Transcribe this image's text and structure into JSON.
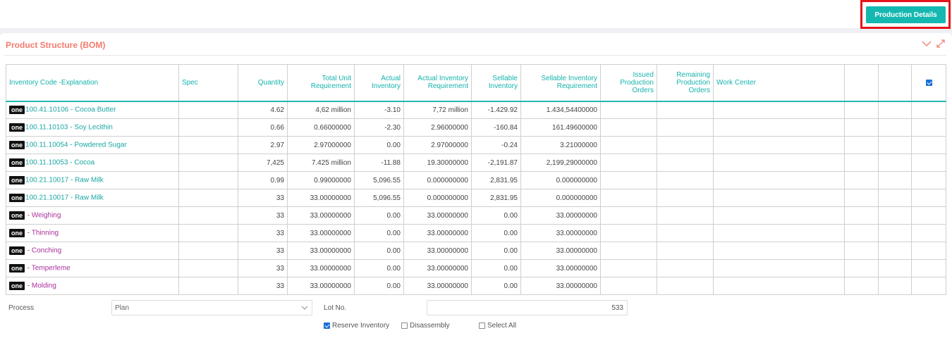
{
  "header": {
    "production_details_label": "Production Details"
  },
  "panel": {
    "title": "Product Structure (BOM)"
  },
  "table": {
    "columns": {
      "code": "Inventory Code -Explanation",
      "spec": "Spec",
      "quantity": "Quantity",
      "total_unit": "Total Unit Requirement",
      "actual_inventory": "Actual Inventory",
      "actual_inventory_req": "Actual Inventory Requirement",
      "sellable_inventory": "Sellable Inventory",
      "sellable_inventory_req": "Sellable Inventory Requirement",
      "issued_orders": "Issued Production Orders",
      "remaining_orders": "Remaining Production Orders",
      "work_center": "Work Center"
    },
    "rows": [
      {
        "badge": "one",
        "code": "100.41.10106 - Cocoa Butter",
        "quantity": "4.62",
        "total_unit": "4,62 million",
        "actual_inventory": "-3.10",
        "actual_inventory_req": "7,72 million",
        "sellable_inventory": "-1.429.92",
        "sellable_inventory_req": "1.434,54400000"
      },
      {
        "badge": "one",
        "code": "100.11.10103 - Soy Lecithin",
        "quantity": "0.66",
        "total_unit": "0.66000000",
        "actual_inventory": "-2.30",
        "actual_inventory_req": "2.96000000",
        "sellable_inventory": "-160.84",
        "sellable_inventory_req": "161.49600000"
      },
      {
        "badge": "one",
        "code": "100.11.10054 - Powdered Sugar",
        "quantity": "2.97",
        "total_unit": "2.97000000",
        "actual_inventory": "0.00",
        "actual_inventory_req": "2.97000000",
        "sellable_inventory": "-0.24",
        "sellable_inventory_req": "3.21000000"
      },
      {
        "badge": "one",
        "code": "100.11.10053 - Cocoa",
        "quantity": "7,425",
        "total_unit": "7.425 million",
        "actual_inventory": "-11.88",
        "actual_inventory_req": "19.30000000",
        "sellable_inventory": "-2,191.87",
        "sellable_inventory_req": "2,199,29000000"
      },
      {
        "badge": "one",
        "code": "100.21.10017 - Raw Milk",
        "quantity": "0.99",
        "total_unit": "0.99000000",
        "actual_inventory": "5,096.55",
        "actual_inventory_req": "0.000000000",
        "sellable_inventory": "2,831.95",
        "sellable_inventory_req": "0.000000000"
      },
      {
        "badge": "one",
        "code": "100.21.10017 - Raw Milk",
        "quantity": "33",
        "total_unit": "33.00000000",
        "actual_inventory": "5,096.55",
        "actual_inventory_req": "0.000000000",
        "sellable_inventory": "2,831.95",
        "sellable_inventory_req": "0.000000000"
      },
      {
        "badge": "one",
        "code": " - Weighing",
        "quantity": "33",
        "total_unit": "33.00000000",
        "actual_inventory": "0.00",
        "actual_inventory_req": "33.00000000",
        "sellable_inventory": "0.00",
        "sellable_inventory_req": "33.00000000"
      },
      {
        "badge": "one",
        "code": " - Thinning",
        "quantity": "33",
        "total_unit": "33.00000000",
        "actual_inventory": "0.00",
        "actual_inventory_req": "33.00000000",
        "sellable_inventory": "0.00",
        "sellable_inventory_req": "33.00000000"
      },
      {
        "badge": "one",
        "code": " - Conching",
        "quantity": "33",
        "total_unit": "33.00000000",
        "actual_inventory": "0.00",
        "actual_inventory_req": "33.00000000",
        "sellable_inventory": "0.00",
        "sellable_inventory_req": "33.00000000"
      },
      {
        "badge": "one",
        "code": " - Temperleme",
        "quantity": "33",
        "total_unit": "33.00000000",
        "actual_inventory": "0.00",
        "actual_inventory_req": "33.00000000",
        "sellable_inventory": "0.00",
        "sellable_inventory_req": "33.00000000"
      },
      {
        "badge": "one",
        "code": " - Molding",
        "quantity": "33",
        "total_unit": "33.00000000",
        "actual_inventory": "0.00",
        "actual_inventory_req": "33.00000000",
        "sellable_inventory": "0.00",
        "sellable_inventory_req": "33.00000000"
      }
    ]
  },
  "form": {
    "process_label": "Process",
    "process_value": "Plan",
    "lot_label": "Lot No.",
    "lot_value": "533",
    "reserve_inventory_label": "Reserve Inventory",
    "disassembly_label": "Disassembly",
    "select_all_label": "Select All"
  },
  "colors": {
    "accent": "#15b8b0",
    "title": "#f47a6e",
    "negative": "#e8262c",
    "operation_link": "#a8309b",
    "highlight_border": "#e3151a"
  }
}
